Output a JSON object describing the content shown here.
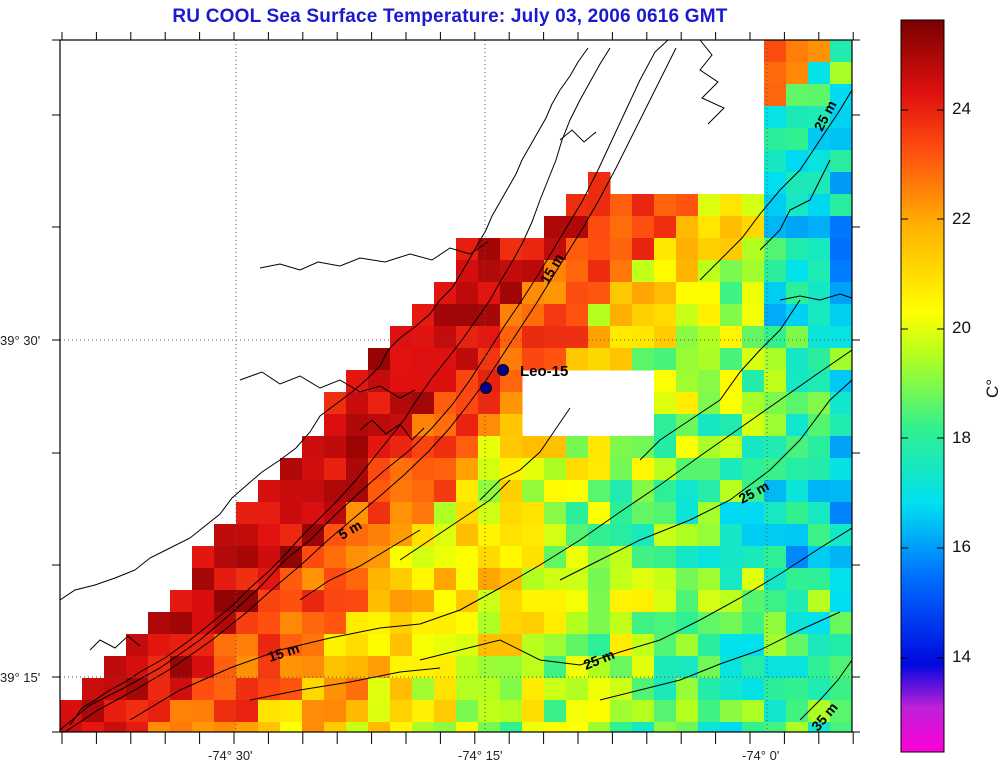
{
  "title": "RU COOL  Sea Surface Temperature:  July 03, 2006 0616 GMT",
  "y_axis": {
    "ticks": [
      "39° 30'",
      "39° 15'"
    ]
  },
  "x_axis": {
    "ticks": [
      "-74° 30'",
      "-74° 15'",
      "-74° 0'"
    ]
  },
  "colorbar": {
    "unit": "C°",
    "ticks": [
      "14",
      "16",
      "18",
      "20",
      "22",
      "24"
    ],
    "min": 12.2,
    "max": 25.8
  },
  "station": {
    "label": "Leo-15"
  },
  "contour_labels": [
    "15 m",
    "25 m",
    "5 m",
    "25 m",
    "15 m",
    "25 m",
    "35 m"
  ],
  "colors": {
    "title": "#1a1ad0",
    "contour": "#000000",
    "missing": "#ffffff"
  }
}
